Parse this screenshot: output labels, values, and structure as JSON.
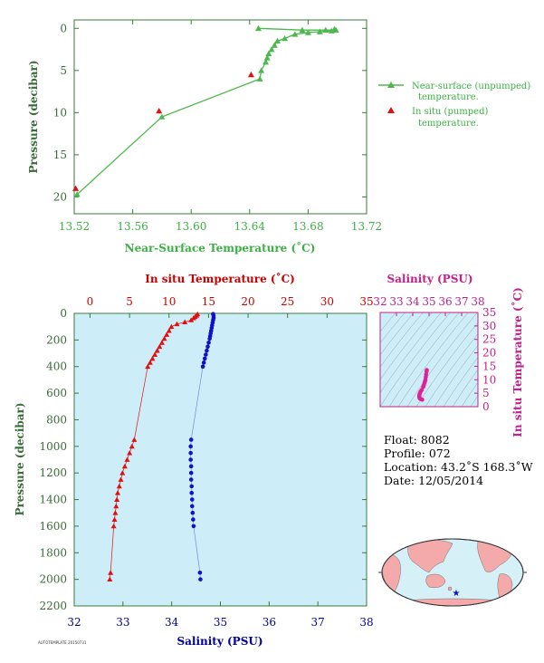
{
  "colors": {
    "near_surface": "#4db84d",
    "in_situ": "#e01010",
    "salinity": "#1010cc",
    "salinity_ts": "#e0209a",
    "temp_axis": "#cc0000",
    "salinity_axis": "#00009a",
    "profile_bg": "#cdeef8",
    "axis_label_green": "#3cb043",
    "frame": "#3a7a3a"
  },
  "info": {
    "float": "Float:  8082",
    "profile": "Profile:  072",
    "location": "Location:  43.2˚S  168.3˚W",
    "date": "Date:  12/05/2014"
  },
  "footer_code": "AUTOTEMPLATE 20150731",
  "map": {
    "icon": "world-map-icon",
    "marker": "star-icon"
  },
  "chart_data": [
    {
      "type": "line",
      "id": "near_surface",
      "xlabel": "Near-Surface Temperature (˚C)",
      "ylabel": "Pressure (decibar)",
      "xlim": [
        13.52,
        13.72
      ],
      "ylim": [
        22,
        -1
      ],
      "xticks": [
        "13.52",
        "13.56",
        "13.60",
        "13.64",
        "13.68",
        "13.72"
      ],
      "yticks": [
        "0",
        "5",
        "10",
        "15",
        "20"
      ],
      "legend": [
        "Near-surface (unpumped)",
        "temperature.",
        "In situ (pumped)",
        "temperature."
      ],
      "series": [
        {
          "name": "Near-surface (unpumped) temperature.",
          "points": [
            [
              13.698,
              0.1
            ],
            [
              13.696,
              0.3
            ],
            [
              13.688,
              0.4
            ],
            [
              13.68,
              0.5
            ],
            [
              13.671,
              0.7
            ],
            [
              13.664,
              1.2
            ],
            [
              13.659,
              1.5
            ],
            [
              13.657,
              2.0
            ],
            [
              13.655,
              2.5
            ],
            [
              13.653,
              3.0
            ],
            [
              13.652,
              3.5
            ],
            [
              13.651,
              4.0
            ],
            [
              13.648,
              5.0
            ],
            [
              13.647,
              6.0
            ],
            [
              13.58,
              10.5
            ],
            [
              13.522,
              19.7
            ]
          ],
          "extra_points": [
            [
              13.646,
              0.0
            ],
            [
              13.676,
              0.2
            ],
            [
              13.692,
              0.2
            ],
            [
              13.699,
              0.2
            ]
          ]
        },
        {
          "name": "In situ (pumped) temperature.",
          "points": [
            [
              13.641,
              5.5
            ],
            [
              13.578,
              9.8
            ],
            [
              13.521,
              19.0
            ]
          ]
        }
      ]
    },
    {
      "type": "line",
      "id": "profile",
      "ylabel": "Pressure (decibar)",
      "xlabel_top": "In situ Temperature (˚C)",
      "xlabel_bottom": "Salinity (PSU)",
      "xlim_top": [
        -2,
        35
      ],
      "xlim_bottom": [
        32,
        38
      ],
      "ylim": [
        2200,
        0
      ],
      "xticks_top": [
        "0",
        "5",
        "10",
        "15",
        "20",
        "25",
        "30",
        "35"
      ],
      "xticks_bottom": [
        "32",
        "33",
        "34",
        "35",
        "36",
        "37",
        "38"
      ],
      "yticks": [
        "0",
        "200",
        "400",
        "600",
        "800",
        "1000",
        "1200",
        "1400",
        "1600",
        "1800",
        "2000",
        "2200"
      ],
      "series": [
        {
          "name": "In situ Temperature",
          "points": [
            [
              13.6,
              5
            ],
            [
              13.5,
              15
            ],
            [
              13.3,
              25
            ],
            [
              13.1,
              35
            ],
            [
              12.8,
              50
            ],
            [
              12.0,
              65
            ],
            [
              11.0,
              80
            ],
            [
              10.3,
              100
            ],
            [
              10.0,
              130
            ],
            [
              9.7,
              160
            ],
            [
              9.4,
              190
            ],
            [
              9.1,
              220
            ],
            [
              8.8,
              250
            ],
            [
              8.5,
              280
            ],
            [
              8.2,
              310
            ],
            [
              7.9,
              340
            ],
            [
              7.6,
              370
            ],
            [
              7.3,
              400
            ],
            [
              5.6,
              950
            ],
            [
              5.3,
              1000
            ],
            [
              5.0,
              1050
            ],
            [
              4.7,
              1100
            ],
            [
              4.4,
              1150
            ],
            [
              4.1,
              1200
            ],
            [
              3.9,
              1250
            ],
            [
              3.7,
              1300
            ],
            [
              3.5,
              1350
            ],
            [
              3.4,
              1400
            ],
            [
              3.3,
              1450
            ],
            [
              3.2,
              1500
            ],
            [
              3.1,
              1550
            ],
            [
              3.0,
              1600
            ],
            [
              2.6,
              1950
            ],
            [
              2.5,
              2000
            ]
          ]
        },
        {
          "name": "Salinity",
          "points": [
            [
              34.85,
              5
            ],
            [
              34.86,
              20
            ],
            [
              34.86,
              35
            ],
            [
              34.85,
              50
            ],
            [
              34.84,
              70
            ],
            [
              34.83,
              90
            ],
            [
              34.82,
              110
            ],
            [
              34.81,
              130
            ],
            [
              34.8,
              150
            ],
            [
              34.79,
              170
            ],
            [
              34.78,
              190
            ],
            [
              34.76,
              220
            ],
            [
              34.74,
              250
            ],
            [
              34.72,
              280
            ],
            [
              34.7,
              310
            ],
            [
              34.68,
              340
            ],
            [
              34.66,
              370
            ],
            [
              34.64,
              400
            ],
            [
              34.4,
              950
            ],
            [
              34.39,
              1000
            ],
            [
              34.39,
              1050
            ],
            [
              34.39,
              1100
            ],
            [
              34.4,
              1150
            ],
            [
              34.4,
              1200
            ],
            [
              34.4,
              1250
            ],
            [
              34.41,
              1300
            ],
            [
              34.41,
              1350
            ],
            [
              34.42,
              1400
            ],
            [
              34.42,
              1450
            ],
            [
              34.43,
              1500
            ],
            [
              34.44,
              1550
            ],
            [
              34.45,
              1600
            ],
            [
              34.58,
              1950
            ],
            [
              34.59,
              2000
            ]
          ]
        }
      ]
    },
    {
      "type": "scatter",
      "id": "ts",
      "xlabel": "Salinity (PSU)",
      "ylabel": "In situ Temperature (˚C)",
      "xlim": [
        32,
        38
      ],
      "ylim": [
        0,
        35
      ],
      "xticks": [
        "32",
        "33",
        "34",
        "35",
        "36",
        "37",
        "38"
      ],
      "yticks": [
        "0",
        "5",
        "10",
        "15",
        "20",
        "25",
        "30",
        "35"
      ],
      "points": [
        [
          34.86,
          13.6
        ],
        [
          34.85,
          13.1
        ],
        [
          34.82,
          12.0
        ],
        [
          34.8,
          11.0
        ],
        [
          34.78,
          10.0
        ],
        [
          34.75,
          9.4
        ],
        [
          34.72,
          8.8
        ],
        [
          34.69,
          8.2
        ],
        [
          34.66,
          7.6
        ],
        [
          34.64,
          7.3
        ],
        [
          34.55,
          6.2
        ],
        [
          34.48,
          5.6
        ],
        [
          34.44,
          5.0
        ],
        [
          34.41,
          4.4
        ],
        [
          34.4,
          3.9
        ],
        [
          34.41,
          3.5
        ],
        [
          34.42,
          3.2
        ],
        [
          34.45,
          3.0
        ],
        [
          34.5,
          2.8
        ],
        [
          34.58,
          2.6
        ]
      ]
    }
  ]
}
